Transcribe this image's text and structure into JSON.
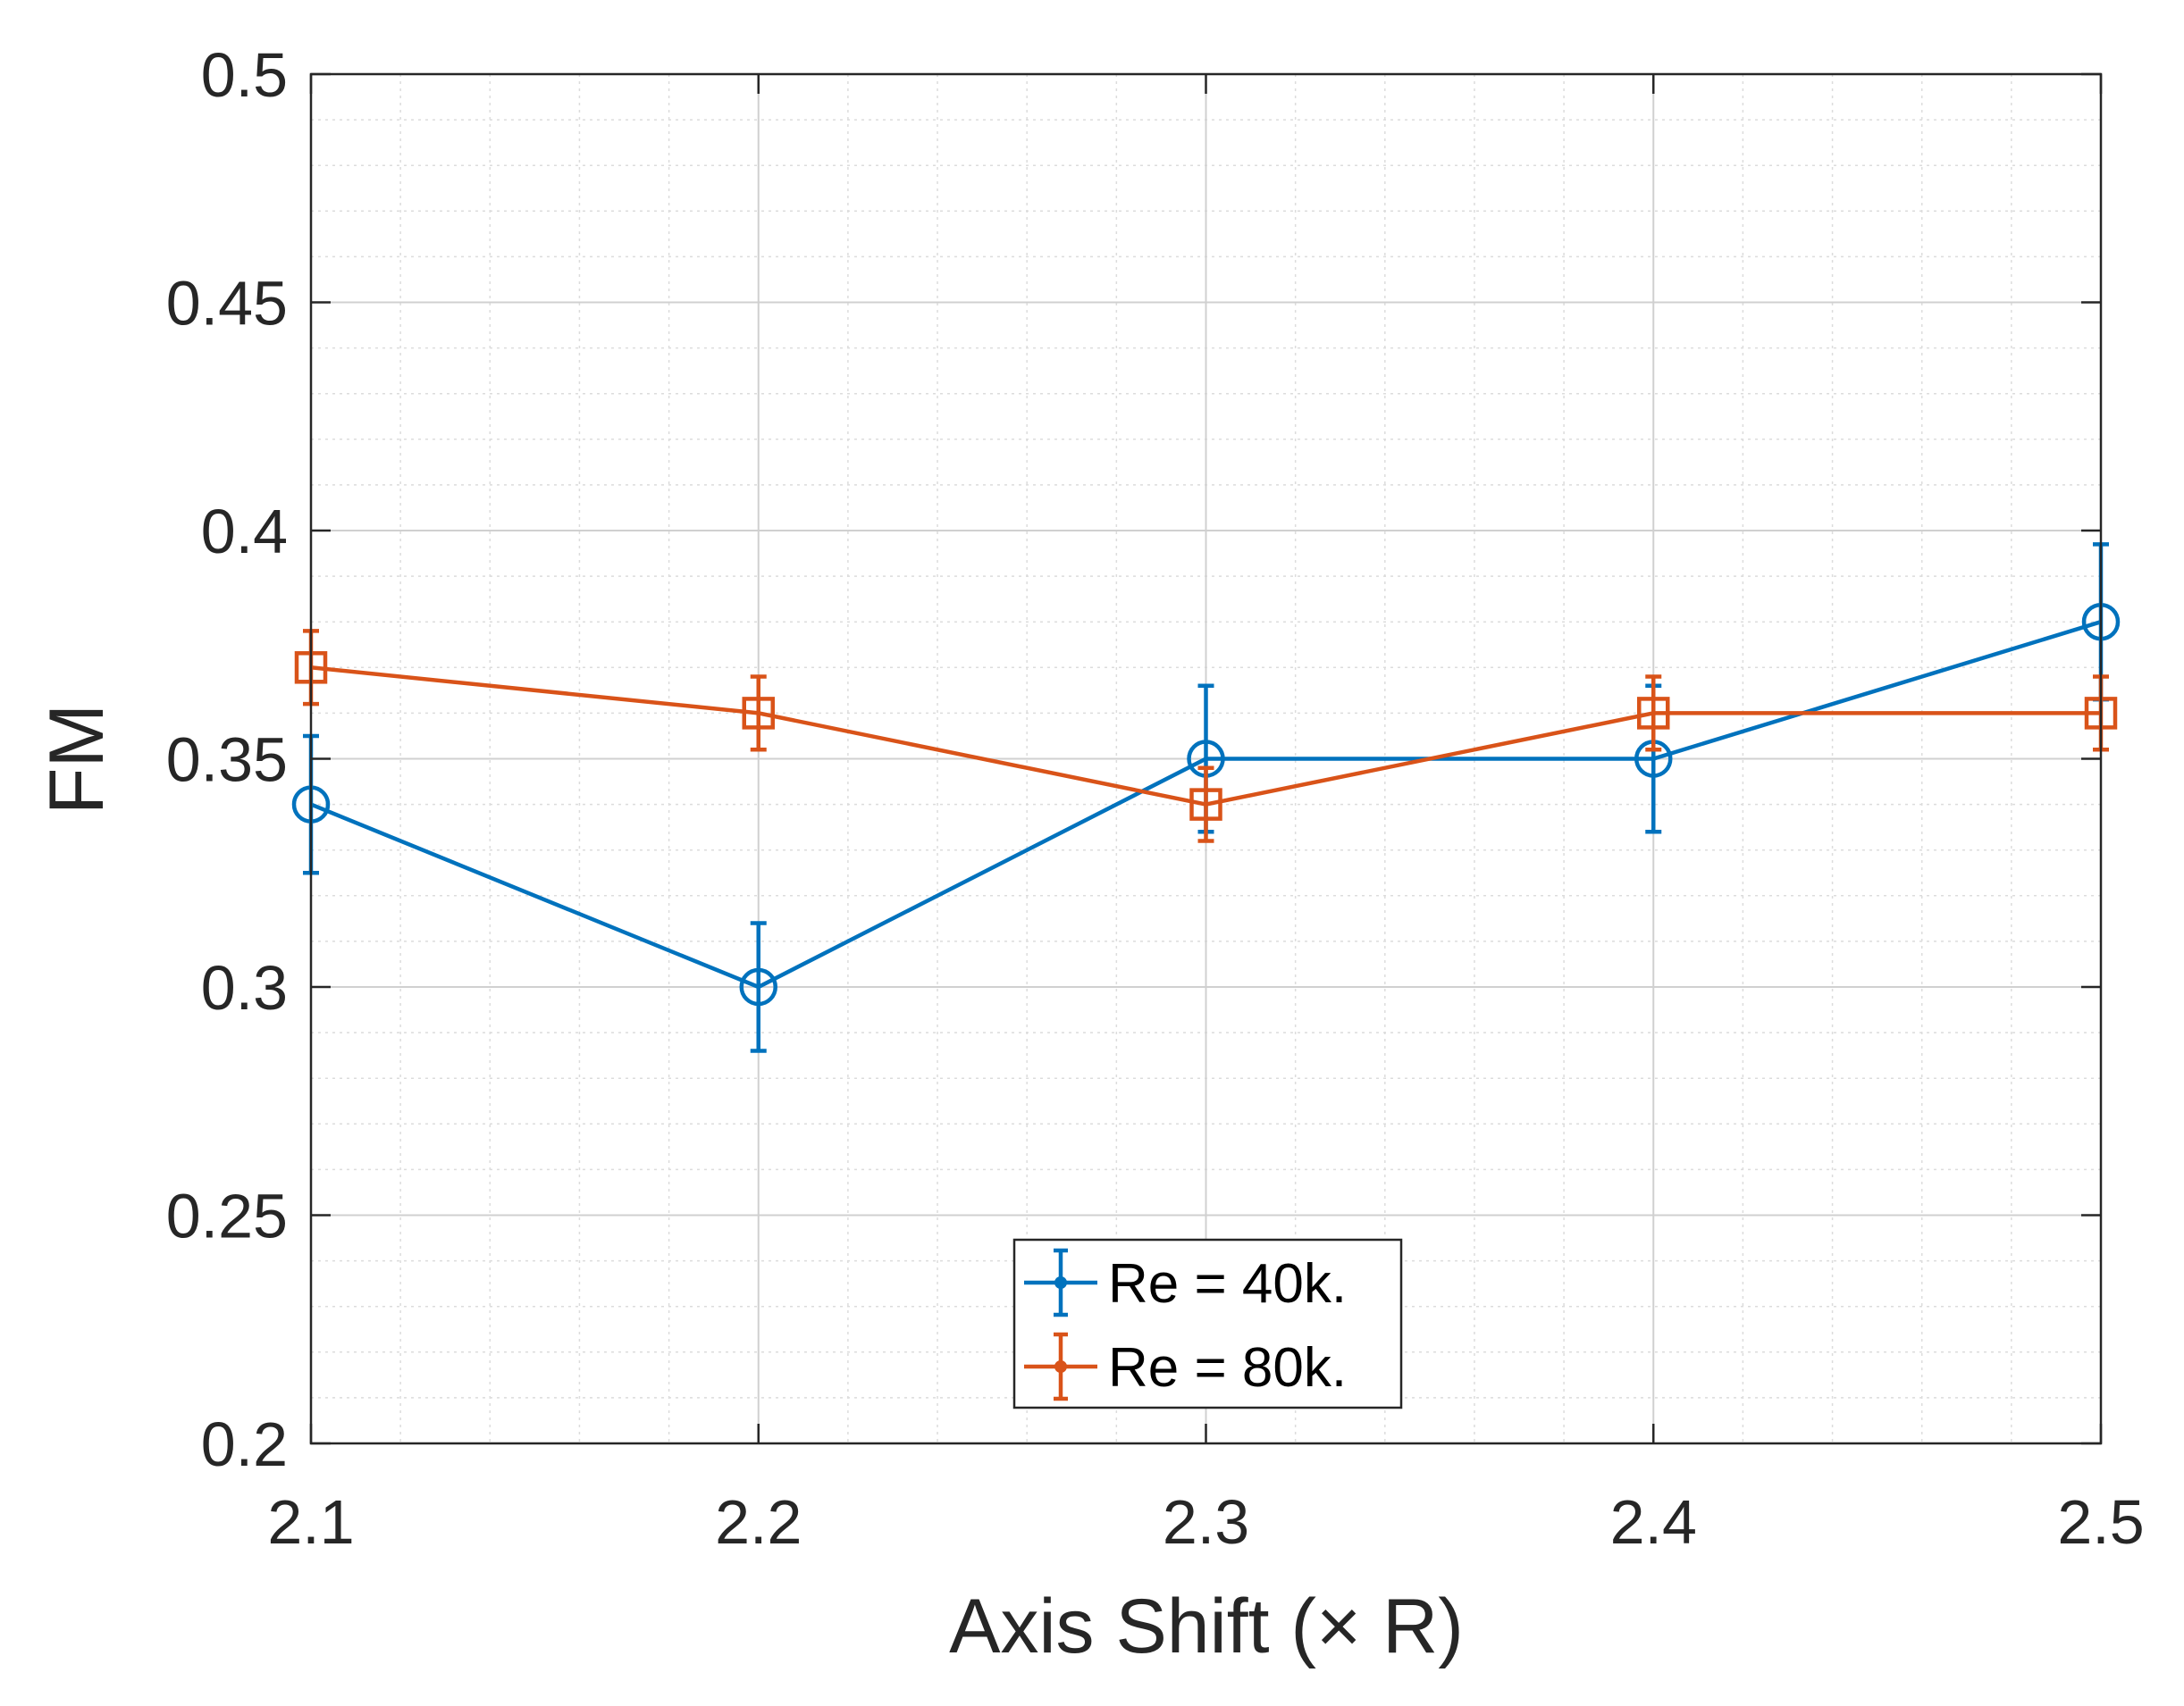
{
  "chart_data": {
    "type": "line",
    "title": "",
    "xlabel": "Axis Shift (× R)",
    "ylabel": "FM",
    "xlim": [
      2.1,
      2.5
    ],
    "ylim": [
      0.2,
      0.5
    ],
    "x_ticks": [
      2.1,
      2.2,
      2.3,
      2.4,
      2.5
    ],
    "x_tick_labels": [
      "2.1",
      "2.2",
      "2.3",
      "2.4",
      "2.5"
    ],
    "y_ticks": [
      0.2,
      0.25,
      0.3,
      0.35,
      0.4,
      0.45,
      0.5
    ],
    "y_tick_labels": [
      "0.2",
      "0.25",
      "0.3",
      "0.35",
      "0.4",
      "0.45",
      "0.5"
    ],
    "x_minor_step": 0.02,
    "y_minor_step": 0.01,
    "grid": true,
    "legend_position": "bottom-center",
    "x": [
      2.1,
      2.2,
      2.3,
      2.4,
      2.5
    ],
    "series": [
      {
        "name": "Re = 40k.",
        "color": "#0072BD",
        "marker": "circle",
        "values": [
          0.34,
          0.3,
          0.35,
          0.35,
          0.38
        ],
        "error": [
          0.015,
          0.014,
          0.016,
          0.016,
          0.017
        ]
      },
      {
        "name": "Re = 80k.",
        "color": "#D95319",
        "marker": "square",
        "values": [
          0.37,
          0.36,
          0.34,
          0.36,
          0.36
        ],
        "error": [
          0.008,
          0.008,
          0.008,
          0.008,
          0.008
        ]
      }
    ]
  }
}
